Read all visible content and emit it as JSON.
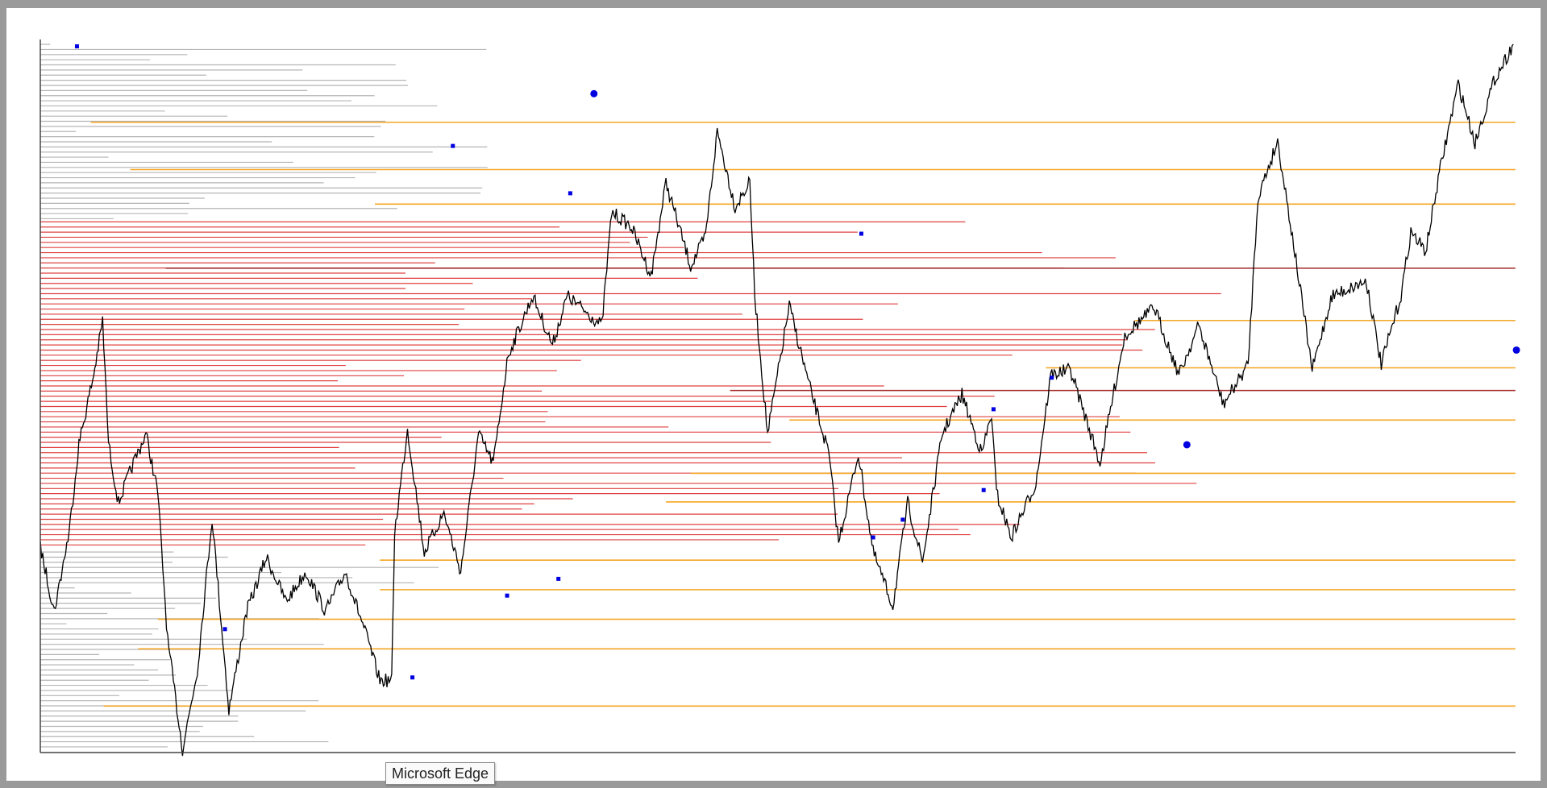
{
  "tooltip": {
    "label": "Microsoft Edge"
  }
}
